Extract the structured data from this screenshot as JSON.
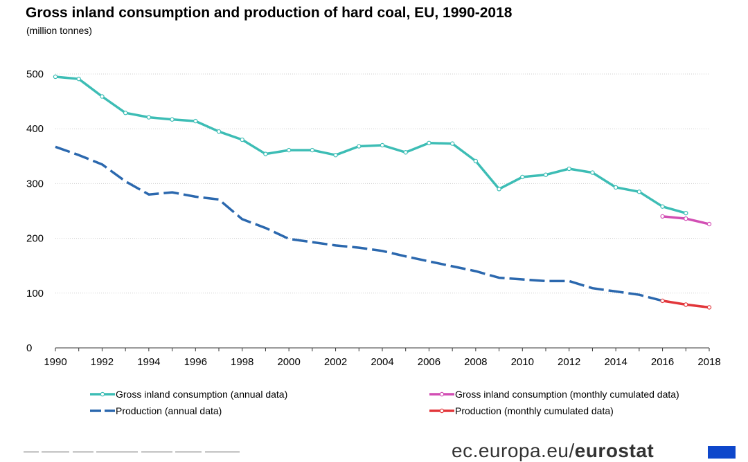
{
  "title": "Gross inland consumption and production of hard coal, EU, 1990-2018",
  "subtitle": "(million tonnes)",
  "brand": {
    "prefix": "ec.europa.eu/",
    "name": "eurostat"
  },
  "chart_data": {
    "type": "line",
    "title": "Gross inland consumption and production of hard coal, EU, 1990-2018",
    "subtitle": "(million tonnes)",
    "xlabel": "",
    "ylabel": "",
    "xlim": [
      1990,
      2018
    ],
    "ylim": [
      0,
      500
    ],
    "xticks": [
      1990,
      1992,
      1994,
      1996,
      1998,
      2000,
      2002,
      2004,
      2006,
      2008,
      2010,
      2012,
      2014,
      2016,
      2018
    ],
    "yticks": [
      0,
      100,
      200,
      300,
      400,
      500
    ],
    "grid": "horizontal",
    "legend_position": "bottom",
    "series": [
      {
        "name": "Gross inland consumption (annual data)",
        "color": "#3dbdb5",
        "style": "solid",
        "x": [
          1990,
          1991,
          1992,
          1993,
          1994,
          1995,
          1996,
          1997,
          1998,
          1999,
          2000,
          2001,
          2002,
          2003,
          2004,
          2005,
          2006,
          2007,
          2008,
          2009,
          2010,
          2011,
          2012,
          2013,
          2014,
          2015,
          2016,
          2017
        ],
        "y": [
          495,
          491,
          459,
          429,
          421,
          417,
          414,
          395,
          380,
          354,
          361,
          361,
          352,
          368,
          370,
          357,
          374,
          373,
          341,
          290,
          312,
          316,
          327,
          320,
          293,
          285,
          258,
          246
        ]
      },
      {
        "name": "Gross inland consumption (monthly cumulated data)",
        "color": "#d24fb4",
        "style": "solid",
        "x": [
          2016,
          2017,
          2018
        ],
        "y": [
          240,
          236,
          226
        ]
      },
      {
        "name": "Production (annual data)",
        "color": "#2b68ae",
        "style": "dashed",
        "x": [
          1990,
          1991,
          1992,
          1993,
          1994,
          1995,
          1996,
          1997,
          1998,
          1999,
          2000,
          2001,
          2002,
          2003,
          2004,
          2005,
          2006,
          2007,
          2008,
          2009,
          2010,
          2011,
          2012,
          2013,
          2014,
          2015,
          2016
        ],
        "y": [
          367,
          352,
          335,
          304,
          280,
          284,
          276,
          271,
          235,
          219,
          199,
          193,
          187,
          183,
          177,
          167,
          158,
          149,
          140,
          128,
          125,
          122,
          122,
          109,
          103,
          97,
          86
        ]
      },
      {
        "name": "Production (monthly cumulated data)",
        "color": "#e2363a",
        "style": "solid",
        "x": [
          2016,
          2017,
          2018
        ],
        "y": [
          86,
          79,
          74
        ]
      }
    ]
  }
}
